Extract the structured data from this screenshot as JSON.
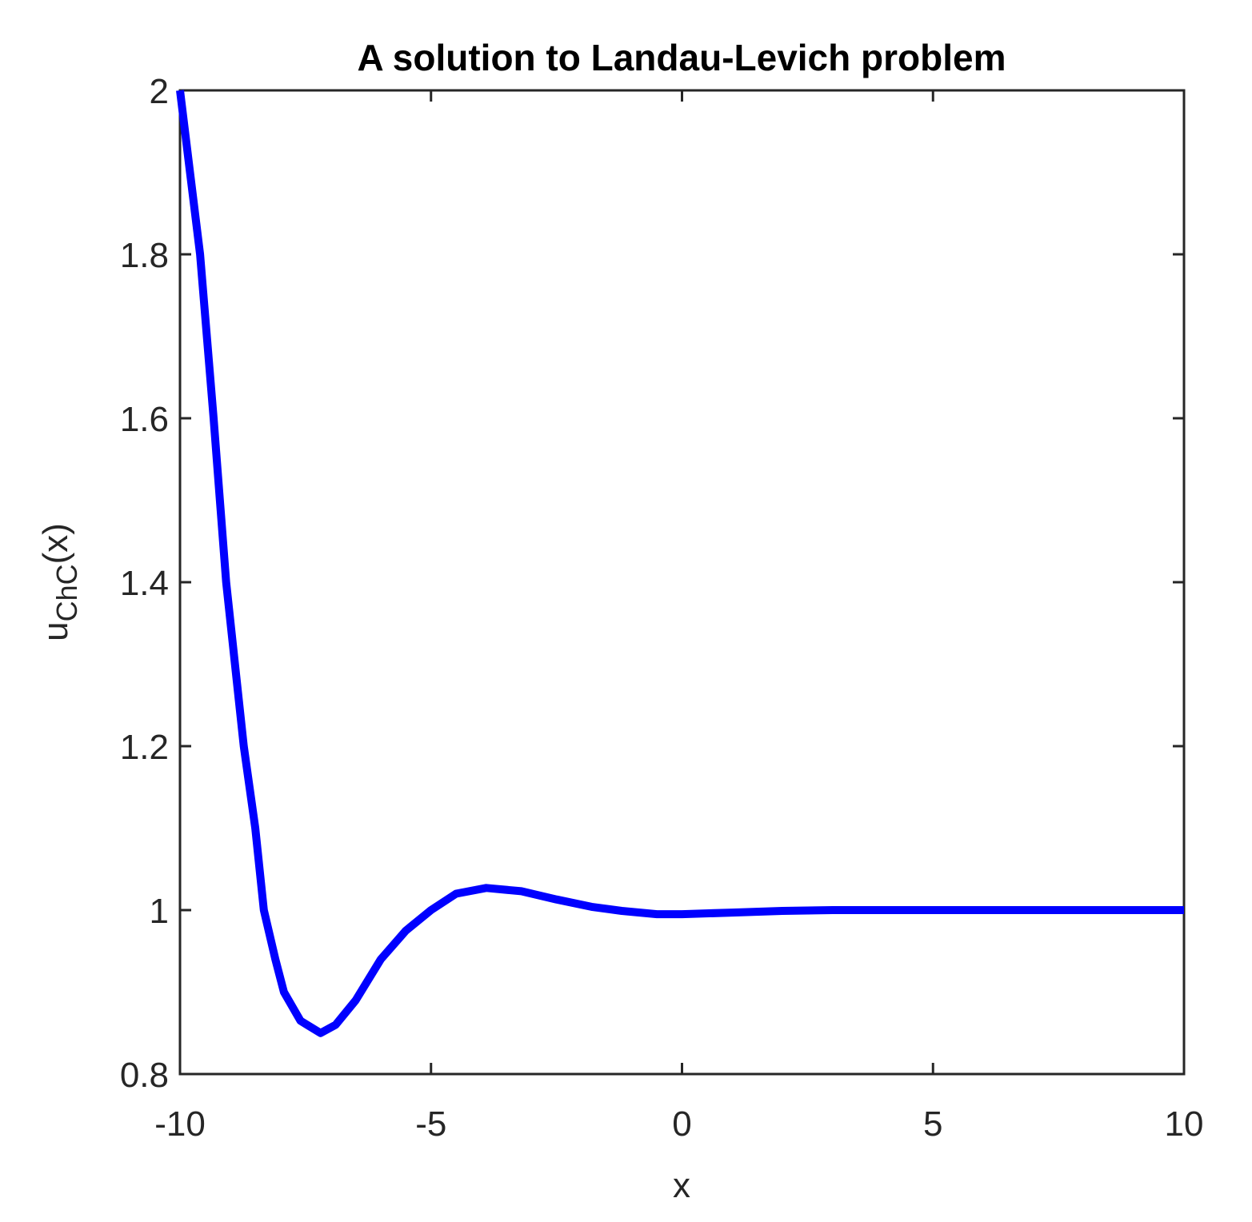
{
  "chart_data": {
    "type": "line",
    "title": "A solution to Landau-Levich problem",
    "x_label": "x",
    "y_label": {
      "base": "u",
      "subscript": "ChC",
      "suffix": "(x)"
    },
    "x": [
      -10,
      -9.8,
      -9.6,
      -9.33,
      -9.08,
      -8.73,
      -8.5,
      -8.33,
      -8.1,
      -7.93,
      -7.6,
      -7.2,
      -6.9,
      -6.5,
      -6,
      -5.5,
      -5,
      -4.5,
      -3.9,
      -3.2,
      -2.5,
      -1.8,
      -1.2,
      -0.5,
      0,
      1,
      2,
      3,
      5,
      7,
      10
    ],
    "values": [
      2.0,
      1.9,
      1.8,
      1.6,
      1.4,
      1.2,
      1.1,
      1.0,
      0.94,
      0.9,
      0.865,
      0.85,
      0.86,
      0.89,
      0.94,
      0.975,
      1.0,
      1.02,
      1.027,
      1.023,
      1.013,
      1.004,
      0.999,
      0.995,
      0.995,
      0.997,
      0.999,
      1.0,
      1.0,
      1.0,
      1.0
    ],
    "color": "#0000ff",
    "xlim": [
      -10,
      10
    ],
    "xticks": [
      -10,
      -5,
      0,
      5,
      10
    ],
    "ylim": [
      0.8,
      2
    ],
    "yticks": [
      0.8,
      1,
      1.2,
      1.4,
      1.6,
      1.8,
      2
    ]
  }
}
